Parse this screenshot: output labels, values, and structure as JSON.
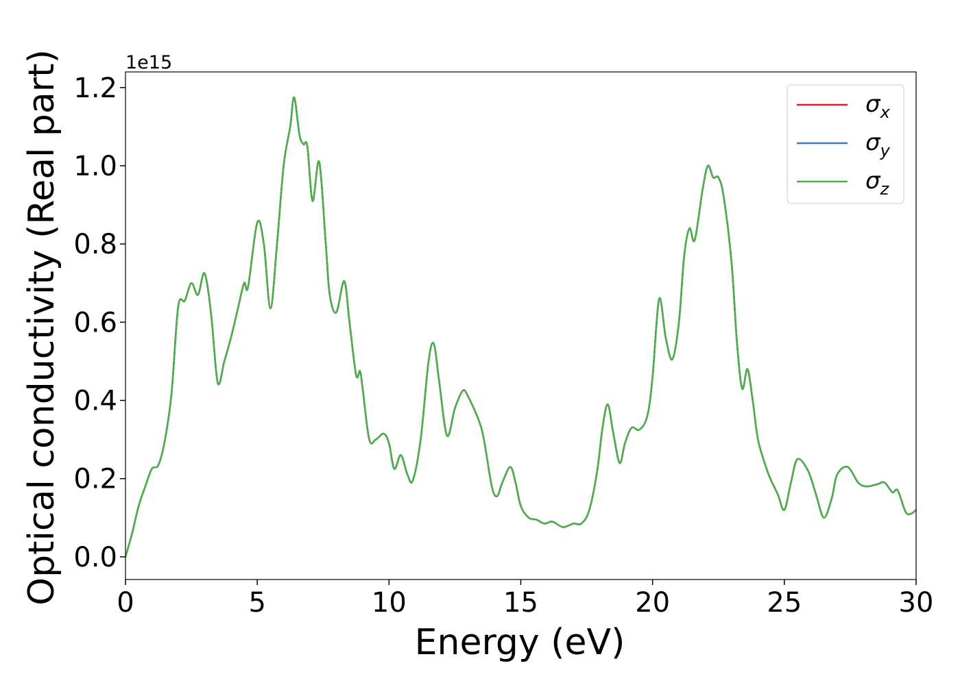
{
  "chart_data": {
    "type": "line",
    "x_label": "Energy (eV)",
    "y_label": "Optical conductivity (Real part)",
    "y_offset_label": "1e15",
    "xlim": [
      0,
      30
    ],
    "ylim": [
      -0.058,
      1.24
    ],
    "xticks": [
      0,
      5,
      10,
      15,
      20,
      25,
      30
    ],
    "yticks": [
      {
        "value": 0,
        "label": "0.0"
      },
      0.2,
      0.4,
      0.6,
      0.8,
      {
        "value": 1,
        "label": "1.0"
      },
      1.2
    ],
    "legend": "upper right",
    "x": [
      0,
      0.25,
      0.5,
      0.75,
      1.0,
      1.25,
      1.5,
      1.75,
      2.0,
      2.25,
      2.5,
      2.75,
      3.0,
      3.25,
      3.5,
      3.75,
      4.0,
      4.25,
      4.5,
      4.65,
      5.0,
      5.25,
      5.5,
      5.75,
      6.0,
      6.25,
      6.4,
      6.6,
      6.75,
      6.9,
      7.1,
      7.35,
      7.6,
      7.75,
      8.0,
      8.3,
      8.5,
      8.75,
      8.9,
      9.0,
      9.25,
      9.5,
      9.8,
      10.0,
      10.2,
      10.45,
      10.7,
      10.9,
      11.2,
      11.5,
      11.7,
      11.9,
      12.2,
      12.5,
      12.8,
      13.0,
      13.4,
      13.6,
      13.9,
      14.1,
      14.3,
      14.6,
      14.8,
      15.0,
      15.3,
      15.6,
      15.9,
      16.2,
      16.6,
      17.0,
      17.3,
      17.6,
      17.9,
      18.1,
      18.3,
      18.5,
      18.75,
      18.95,
      19.2,
      19.5,
      19.8,
      20.0,
      20.25,
      20.5,
      20.75,
      21.0,
      21.2,
      21.4,
      21.6,
      21.9,
      22.1,
      22.3,
      22.5,
      22.7,
      23.0,
      23.2,
      23.4,
      23.6,
      23.8,
      24.0,
      24.3,
      24.5,
      24.75,
      25.0,
      25.25,
      25.5,
      25.9,
      26.2,
      26.5,
      26.8,
      27.0,
      27.4,
      27.8,
      28.1,
      28.5,
      28.8,
      29.1,
      29.3,
      29.6,
      29.8,
      30.0
    ],
    "series": [
      {
        "name": "σx",
        "color": "#e41a1c",
        "values": [
          0.0,
          0.06,
          0.13,
          0.18,
          0.225,
          0.235,
          0.3,
          0.42,
          0.64,
          0.655,
          0.7,
          0.67,
          0.725,
          0.62,
          0.445,
          0.5,
          0.56,
          0.63,
          0.7,
          0.69,
          0.855,
          0.8,
          0.635,
          0.8,
          1.0,
          1.1,
          1.175,
          1.08,
          1.055,
          1.05,
          0.91,
          1.01,
          0.8,
          0.67,
          0.625,
          0.705,
          0.6,
          0.465,
          0.475,
          0.43,
          0.3,
          0.3,
          0.315,
          0.29,
          0.225,
          0.26,
          0.21,
          0.195,
          0.3,
          0.5,
          0.545,
          0.45,
          0.31,
          0.38,
          0.425,
          0.41,
          0.35,
          0.3,
          0.18,
          0.155,
          0.19,
          0.23,
          0.19,
          0.13,
          0.1,
          0.095,
          0.085,
          0.09,
          0.076,
          0.085,
          0.085,
          0.12,
          0.22,
          0.33,
          0.39,
          0.32,
          0.24,
          0.29,
          0.33,
          0.325,
          0.36,
          0.46,
          0.66,
          0.56,
          0.505,
          0.6,
          0.77,
          0.84,
          0.81,
          0.94,
          1.0,
          0.97,
          0.97,
          0.92,
          0.75,
          0.55,
          0.43,
          0.48,
          0.4,
          0.3,
          0.23,
          0.195,
          0.16,
          0.12,
          0.19,
          0.25,
          0.22,
          0.16,
          0.1,
          0.15,
          0.21,
          0.23,
          0.19,
          0.18,
          0.185,
          0.19,
          0.165,
          0.17,
          0.115,
          0.11,
          0.12
        ]
      },
      {
        "name": "σy",
        "color": "#377eb8",
        "values": [
          0.0,
          0.06,
          0.13,
          0.18,
          0.225,
          0.235,
          0.3,
          0.42,
          0.64,
          0.655,
          0.7,
          0.67,
          0.725,
          0.62,
          0.445,
          0.5,
          0.56,
          0.63,
          0.7,
          0.69,
          0.855,
          0.8,
          0.635,
          0.8,
          1.0,
          1.1,
          1.175,
          1.08,
          1.055,
          1.05,
          0.91,
          1.01,
          0.8,
          0.67,
          0.625,
          0.705,
          0.6,
          0.465,
          0.475,
          0.43,
          0.3,
          0.3,
          0.315,
          0.29,
          0.225,
          0.26,
          0.21,
          0.195,
          0.3,
          0.5,
          0.545,
          0.45,
          0.31,
          0.38,
          0.425,
          0.41,
          0.35,
          0.3,
          0.18,
          0.155,
          0.19,
          0.23,
          0.19,
          0.13,
          0.1,
          0.095,
          0.085,
          0.09,
          0.076,
          0.085,
          0.085,
          0.12,
          0.22,
          0.33,
          0.39,
          0.32,
          0.24,
          0.29,
          0.33,
          0.325,
          0.36,
          0.46,
          0.66,
          0.56,
          0.505,
          0.6,
          0.77,
          0.84,
          0.81,
          0.94,
          1.0,
          0.97,
          0.97,
          0.92,
          0.75,
          0.55,
          0.43,
          0.48,
          0.4,
          0.3,
          0.23,
          0.195,
          0.16,
          0.12,
          0.19,
          0.25,
          0.22,
          0.16,
          0.1,
          0.15,
          0.21,
          0.23,
          0.19,
          0.18,
          0.185,
          0.19,
          0.165,
          0.17,
          0.115,
          0.11,
          0.12
        ]
      },
      {
        "name": "σz",
        "color": "#4daf4a",
        "values": [
          0.0,
          0.06,
          0.13,
          0.18,
          0.225,
          0.235,
          0.3,
          0.42,
          0.64,
          0.655,
          0.7,
          0.67,
          0.725,
          0.62,
          0.445,
          0.5,
          0.56,
          0.63,
          0.7,
          0.69,
          0.855,
          0.8,
          0.635,
          0.8,
          1.0,
          1.1,
          1.175,
          1.08,
          1.055,
          1.05,
          0.91,
          1.01,
          0.8,
          0.67,
          0.625,
          0.705,
          0.6,
          0.465,
          0.475,
          0.43,
          0.3,
          0.3,
          0.315,
          0.29,
          0.225,
          0.26,
          0.21,
          0.195,
          0.3,
          0.5,
          0.545,
          0.45,
          0.31,
          0.38,
          0.425,
          0.41,
          0.35,
          0.3,
          0.18,
          0.155,
          0.19,
          0.23,
          0.19,
          0.13,
          0.1,
          0.095,
          0.085,
          0.09,
          0.076,
          0.085,
          0.085,
          0.12,
          0.22,
          0.33,
          0.39,
          0.32,
          0.24,
          0.29,
          0.33,
          0.325,
          0.36,
          0.46,
          0.66,
          0.56,
          0.505,
          0.6,
          0.77,
          0.84,
          0.81,
          0.94,
          1.0,
          0.97,
          0.97,
          0.92,
          0.75,
          0.55,
          0.43,
          0.48,
          0.4,
          0.3,
          0.23,
          0.195,
          0.16,
          0.12,
          0.19,
          0.25,
          0.22,
          0.16,
          0.1,
          0.15,
          0.21,
          0.23,
          0.19,
          0.18,
          0.185,
          0.19,
          0.165,
          0.17,
          0.115,
          0.11,
          0.12
        ]
      }
    ]
  }
}
